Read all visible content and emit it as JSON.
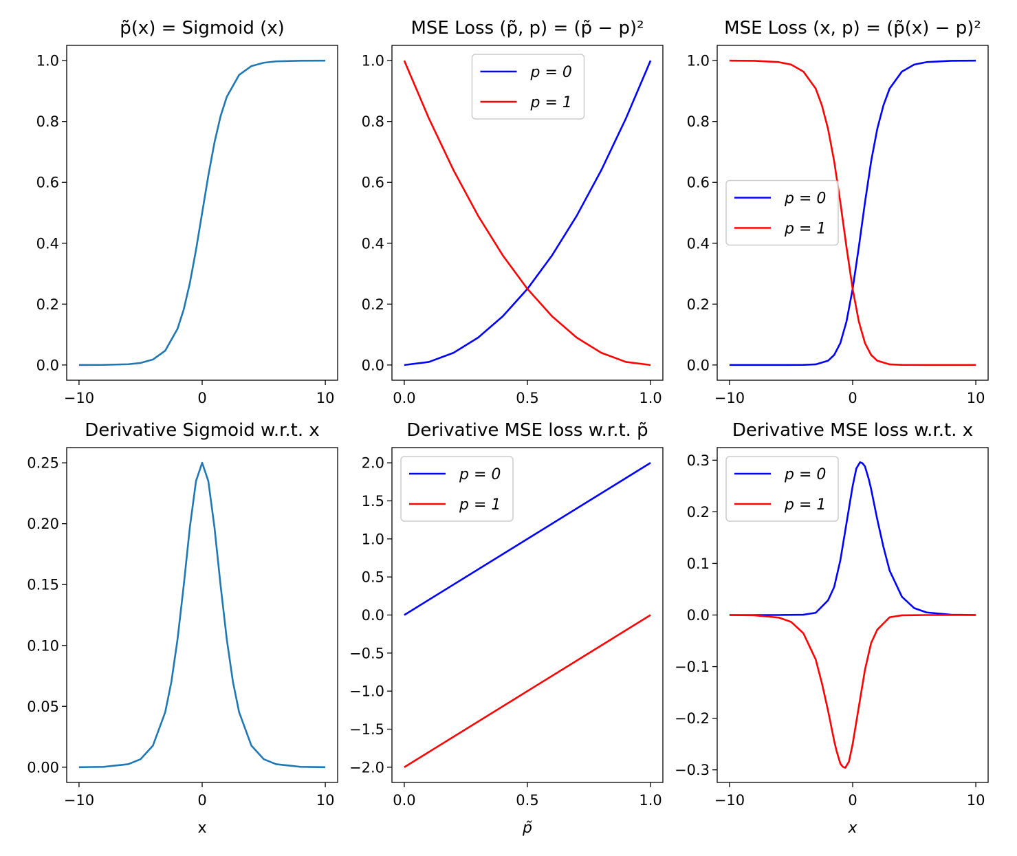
{
  "chart_data": [
    {
      "type": "line",
      "title": "p̃(x) = Sigmoid (x)",
      "xlabel": "",
      "ylabel": "",
      "xlim": [
        -11,
        11
      ],
      "ylim": [
        -0.05,
        1.05
      ],
      "xticks": [
        -10,
        0,
        10
      ],
      "xtick_labels": [
        "−10",
        "0",
        "10"
      ],
      "yticks": [
        0.0,
        0.2,
        0.4,
        0.6,
        0.8,
        1.0
      ],
      "ytick_labels": [
        "0.0",
        "0.2",
        "0.4",
        "0.6",
        "0.8",
        "1.0"
      ],
      "legend": null,
      "series": [
        {
          "color": "#1f77b4",
          "x": [
            -10,
            -8,
            -6,
            -5,
            -4,
            -3,
            -2,
            -1.5,
            -1,
            -0.5,
            0,
            0.5,
            1,
            1.5,
            2,
            3,
            4,
            5,
            6,
            8,
            10
          ],
          "y": [
            5e-05,
            0.0003,
            0.0025,
            0.0067,
            0.018,
            0.047,
            0.119,
            0.182,
            0.269,
            0.378,
            0.5,
            0.622,
            0.731,
            0.818,
            0.881,
            0.953,
            0.982,
            0.993,
            0.9975,
            0.9997,
            0.99995
          ]
        }
      ]
    },
    {
      "type": "line",
      "title": "MSE Loss (p̃, p) = (p̃ − p)²",
      "xlabel": "",
      "ylabel": "",
      "xlim": [
        -0.05,
        1.05
      ],
      "ylim": [
        -0.05,
        1.05
      ],
      "xticks": [
        0.0,
        0.5,
        1.0
      ],
      "xtick_labels": [
        "0.0",
        "0.5",
        "1.0"
      ],
      "yticks": [
        0.0,
        0.2,
        0.4,
        0.6,
        0.8,
        1.0
      ],
      "ytick_labels": [
        "0.0",
        "0.2",
        "0.4",
        "0.6",
        "0.8",
        "1.0"
      ],
      "legend": "upper-center",
      "series": [
        {
          "name": "p = 0",
          "color": "#0000ff",
          "x": [
            0,
            0.1,
            0.2,
            0.3,
            0.4,
            0.5,
            0.6,
            0.7,
            0.8,
            0.9,
            1.0
          ],
          "y": [
            0,
            0.01,
            0.04,
            0.09,
            0.16,
            0.25,
            0.36,
            0.49,
            0.64,
            0.81,
            1.0
          ]
        },
        {
          "name": "p = 1",
          "color": "#ff0000",
          "x": [
            0,
            0.1,
            0.2,
            0.3,
            0.4,
            0.5,
            0.6,
            0.7,
            0.8,
            0.9,
            1.0
          ],
          "y": [
            1.0,
            0.81,
            0.64,
            0.49,
            0.36,
            0.25,
            0.16,
            0.09,
            0.04,
            0.01,
            0
          ]
        }
      ]
    },
    {
      "type": "line",
      "title": "MSE Loss (x, p) = (p̃(x) − p)²",
      "xlabel": "",
      "ylabel": "",
      "xlim": [
        -11,
        11
      ],
      "ylim": [
        -0.05,
        1.05
      ],
      "xticks": [
        -10,
        0,
        10
      ],
      "xtick_labels": [
        "−10",
        "0",
        "10"
      ],
      "yticks": [
        0.0,
        0.2,
        0.4,
        0.6,
        0.8,
        1.0
      ],
      "ytick_labels": [
        "0.0",
        "0.2",
        "0.4",
        "0.6",
        "0.8",
        "1.0"
      ],
      "legend": "center-left",
      "series": [
        {
          "name": "p = 0",
          "color": "#0000ff",
          "x": [
            -10,
            -6,
            -4,
            -3,
            -2,
            -1.5,
            -1,
            -0.5,
            0,
            0.5,
            1,
            1.5,
            2,
            2.5,
            3,
            4,
            5,
            6,
            8,
            10
          ],
          "y": [
            0,
            0,
            0.0003,
            0.002,
            0.014,
            0.033,
            0.072,
            0.143,
            0.25,
            0.387,
            0.534,
            0.669,
            0.776,
            0.853,
            0.908,
            0.964,
            0.987,
            0.995,
            0.9994,
            1.0
          ]
        },
        {
          "name": "p = 1",
          "color": "#ff0000",
          "x": [
            -10,
            -8,
            -6,
            -5,
            -4,
            -3,
            -2.5,
            -2,
            -1.5,
            -1,
            -0.5,
            0,
            0.5,
            1,
            1.5,
            2,
            3,
            4,
            6,
            10
          ],
          "y": [
            1.0,
            0.9994,
            0.995,
            0.987,
            0.964,
            0.908,
            0.853,
            0.776,
            0.669,
            0.534,
            0.387,
            0.25,
            0.143,
            0.072,
            0.033,
            0.014,
            0.002,
            0.0003,
            0,
            0
          ]
        }
      ]
    },
    {
      "type": "line",
      "title": "Derivative Sigmoid w.r.t. x",
      "xlabel": "x",
      "ylabel": "",
      "xlim": [
        -11,
        11
      ],
      "ylim": [
        -0.0125,
        0.2625
      ],
      "xticks": [
        -10,
        0,
        10
      ],
      "xtick_labels": [
        "−10",
        "0",
        "10"
      ],
      "yticks": [
        0.0,
        0.05,
        0.1,
        0.15,
        0.2,
        0.25
      ],
      "ytick_labels": [
        "0.00",
        "0.05",
        "0.10",
        "0.15",
        "0.20",
        "0.25"
      ],
      "legend": null,
      "series": [
        {
          "color": "#1f77b4",
          "x": [
            -10,
            -8,
            -6,
            -5,
            -4,
            -3,
            -2.5,
            -2,
            -1.5,
            -1,
            -0.5,
            0,
            0.5,
            1,
            1.5,
            2,
            2.5,
            3,
            4,
            5,
            6,
            8,
            10
          ],
          "y": [
            5e-05,
            0.0003,
            0.0025,
            0.0066,
            0.0177,
            0.0452,
            0.0701,
            0.105,
            0.149,
            0.197,
            0.235,
            0.25,
            0.235,
            0.197,
            0.149,
            0.105,
            0.0701,
            0.0452,
            0.0177,
            0.0066,
            0.0025,
            0.0003,
            5e-05
          ]
        }
      ]
    },
    {
      "type": "line",
      "title": "Derivative MSE loss w.r.t. p̃",
      "xlabel": "p̃",
      "ylabel": "",
      "xlim": [
        -0.05,
        1.05
      ],
      "ylim": [
        -2.2,
        2.2
      ],
      "xticks": [
        0.0,
        0.5,
        1.0
      ],
      "xtick_labels": [
        "0.0",
        "0.5",
        "1.0"
      ],
      "yticks": [
        -2.0,
        -1.5,
        -1.0,
        -0.5,
        0.0,
        0.5,
        1.0,
        1.5,
        2.0
      ],
      "ytick_labels": [
        "−2.0",
        "−1.5",
        "−1.0",
        "−0.5",
        "0.0",
        "0.5",
        "1.0",
        "1.5",
        "2.0"
      ],
      "legend": "upper-left",
      "series": [
        {
          "name": "p = 0",
          "color": "#0000ff",
          "x": [
            0,
            1.0
          ],
          "y": [
            0,
            2.0
          ]
        },
        {
          "name": "p = 1",
          "color": "#ff0000",
          "x": [
            0,
            1.0
          ],
          "y": [
            -2.0,
            0
          ]
        }
      ]
    },
    {
      "type": "line",
      "title": "Derivative MSE loss w.r.t. x",
      "xlabel": "x",
      "ylabel": "",
      "xlim": [
        -11,
        11
      ],
      "ylim": [
        -0.3244,
        0.3244
      ],
      "xticks": [
        -10,
        0,
        10
      ],
      "xtick_labels": [
        "−10",
        "0",
        "10"
      ],
      "yticks": [
        -0.3,
        -0.2,
        -0.1,
        0.0,
        0.1,
        0.2,
        0.3
      ],
      "ytick_labels": [
        "−0.3",
        "−0.2",
        "−0.1",
        "0.0",
        "0.1",
        "0.2",
        "0.3"
      ],
      "legend": "upper-left",
      "series": [
        {
          "name": "p = 0",
          "color": "#0000ff",
          "x": [
            -10,
            -6,
            -4,
            -3,
            -2,
            -1.5,
            -1,
            -0.5,
            0,
            0.3,
            0.6,
            0.8,
            1,
            1.3,
            1.5,
            2,
            2.5,
            3,
            4,
            5,
            6,
            8,
            10
          ],
          "y": [
            0,
            0,
            0.0006,
            0.0043,
            0.0284,
            0.0543,
            0.106,
            0.178,
            0.25,
            0.284,
            0.296,
            0.294,
            0.288,
            0.264,
            0.244,
            0.185,
            0.132,
            0.0862,
            0.0354,
            0.0133,
            0.005,
            0.0006,
            0
          ]
        },
        {
          "name": "p = 1",
          "color": "#ff0000",
          "x": [
            -10,
            -8,
            -6,
            -5,
            -4,
            -3,
            -2.5,
            -2,
            -1.5,
            -1.3,
            -1,
            -0.8,
            -0.6,
            -0.3,
            0,
            0.5,
            1,
            1.5,
            2,
            3,
            4,
            6,
            10
          ],
          "y": [
            0,
            -0.0006,
            -0.005,
            -0.0133,
            -0.0354,
            -0.0862,
            -0.132,
            -0.185,
            -0.244,
            -0.264,
            -0.288,
            -0.294,
            -0.296,
            -0.284,
            -0.25,
            -0.178,
            -0.106,
            -0.0543,
            -0.0284,
            -0.0043,
            -0.0006,
            0,
            0
          ]
        }
      ]
    }
  ]
}
